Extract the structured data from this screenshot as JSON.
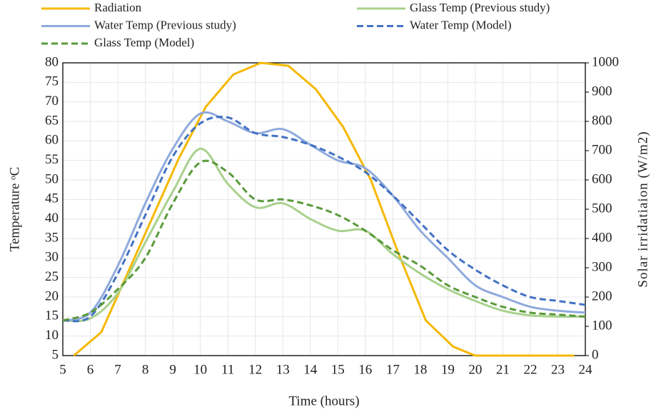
{
  "chart_data": {
    "type": "line",
    "x_label": "Time (hours)",
    "y_label": "Temperature ᵒC",
    "y2_label": "Solar irridatiaion (W/m2)",
    "x": [
      5,
      6,
      7,
      8,
      9,
      10,
      11,
      12,
      13,
      14,
      15,
      16,
      17,
      18,
      19,
      20,
      21,
      22,
      23,
      24
    ],
    "xlim": [
      5,
      24
    ],
    "xticks": [
      5,
      6,
      7,
      8,
      9,
      10,
      11,
      12,
      13,
      14,
      15,
      16,
      17,
      18,
      19,
      20,
      21,
      22,
      23,
      24
    ],
    "ylim": [
      5,
      80
    ],
    "yticks": [
      5,
      10,
      15,
      20,
      25,
      30,
      35,
      40,
      45,
      50,
      55,
      60,
      65,
      70,
      75,
      80
    ],
    "y2lim": [
      0,
      1000
    ],
    "y2ticks": [
      0,
      100,
      200,
      300,
      400,
      500,
      600,
      700,
      800,
      900,
      1000
    ],
    "grid": true,
    "series": [
      {
        "name": "Radiation",
        "color": "#f5b800",
        "axis": "y2",
        "dash": false,
        "smooth": false,
        "x": [
          5.4,
          6.4,
          9.2,
          10.2,
          11.2,
          12.2,
          13.2,
          14.2,
          15.2,
          16.2,
          17.2,
          18.2,
          19.2,
          20,
          23.6
        ],
        "values": [
          0,
          80,
          670,
          850,
          960,
          1000,
          990,
          910,
          780,
          600,
          350,
          120,
          30,
          0,
          0
        ]
      },
      {
        "name": "Glass Temp (Previous study)",
        "color": "#a9d18e",
        "dash": false,
        "smooth": true,
        "values": [
          14,
          14.5,
          21,
          34,
          47,
          58,
          49,
          43,
          44,
          40,
          37,
          37,
          31,
          26,
          22,
          19,
          16.5,
          15.3,
          15,
          15
        ]
      },
      {
        "name": "Water Temp (Previous study)",
        "color": "#8faadc",
        "dash": false,
        "smooth": true,
        "values": [
          14,
          16,
          28,
          44,
          58,
          67,
          65,
          62,
          63,
          59,
          55,
          53,
          46,
          37,
          30,
          23,
          20,
          17.5,
          16.5,
          16
        ]
      },
      {
        "name": "Water Temp (Model)",
        "color": "#4472c4",
        "dash": true,
        "smooth": true,
        "values": [
          14,
          15,
          26,
          41,
          56,
          64.5,
          66,
          62,
          61,
          59,
          56,
          52,
          46,
          39,
          32,
          27,
          23,
          20,
          19,
          18
        ]
      },
      {
        "name": "Glass Temp (Model)",
        "color": "#5a9a3a",
        "dash": true,
        "smooth": true,
        "values": [
          14,
          16,
          22,
          30,
          44,
          54.5,
          52,
          45,
          45,
          43.5,
          41,
          37,
          32,
          28,
          23,
          20,
          17.5,
          16,
          15.5,
          15
        ]
      }
    ]
  }
}
